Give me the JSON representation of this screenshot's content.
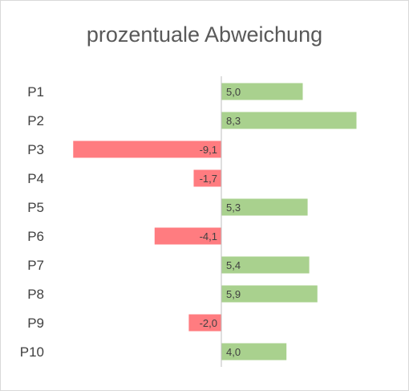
{
  "chart_data": {
    "type": "bar",
    "orientation": "horizontal",
    "title": "prozentuale Abweichung",
    "categories": [
      "P1",
      "P2",
      "P3",
      "P4",
      "P5",
      "P6",
      "P7",
      "P8",
      "P9",
      "P10"
    ],
    "values": [
      5.0,
      8.3,
      -9.1,
      -1.7,
      5.3,
      -4.1,
      5.4,
      5.9,
      -2.0,
      4.0
    ],
    "value_labels": [
      "5,0",
      "8,3",
      "-9,1",
      "-1,7",
      "5,3",
      "-4,1",
      "5,4",
      "5,9",
      "-2,0",
      "4,0"
    ],
    "xlim": [
      -9.1,
      8.3
    ],
    "grid": false,
    "legend": "none",
    "colors": {
      "positive": "#a9d18e",
      "negative": "#ff7c80",
      "axis": "#bfbfbf"
    }
  }
}
